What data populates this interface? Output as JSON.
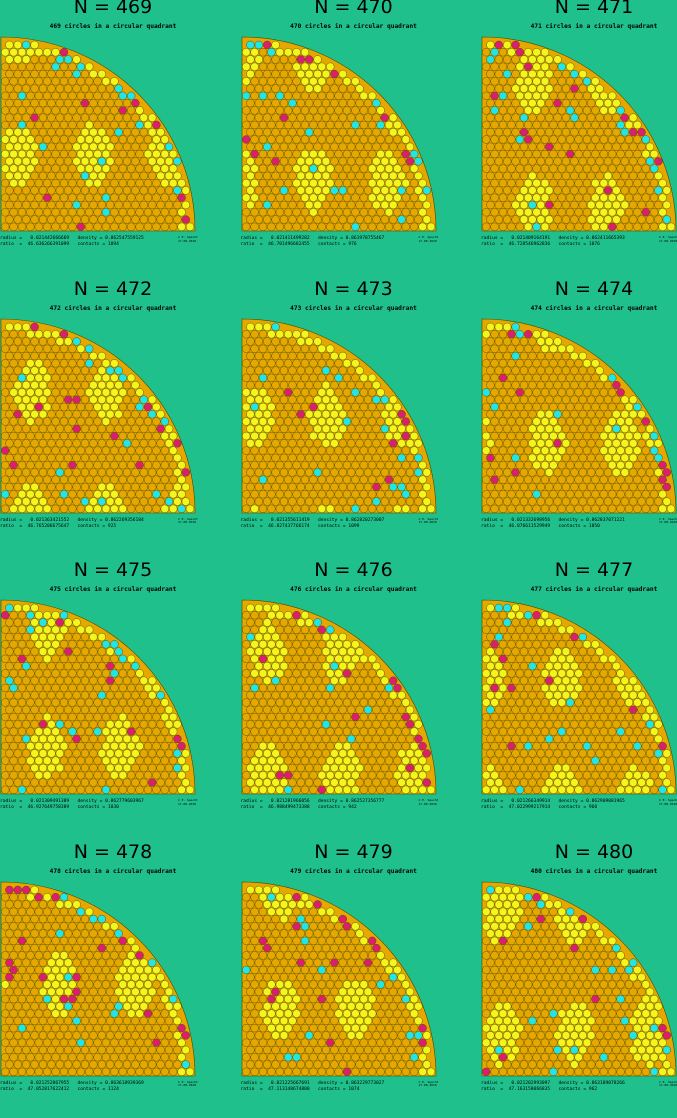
{
  "colors": {
    "background": "#20c08c",
    "orange": "#e6a800",
    "yellow": "#f5f51e",
    "cyan": "#22e6e6",
    "magenta": "#dc1e6e",
    "edge": "#4a4a00"
  },
  "credit": "© E. Specht\n17.08.2010",
  "panels": [
    {
      "title": "N = 469",
      "subtitle": "469 circles in a circular quadrant",
      "stats": "radius =   0.021442666669   density = 0.862547559125\nratio  =  46.636266391099   contacts = 1094"
    },
    {
      "title": "N = 470",
      "subtitle": "470 circles in a circular quadrant",
      "stats": "radius =   0.021411499282   density = 0.861978755467\nratio  =  46.701496682455   contacts = 976"
    },
    {
      "title": "N = 471",
      "subtitle": "471 circles in a circular quadrant",
      "stats": "radius =   0.021409164191   density = 0.862411665393\nratio  =  46.728546962836   contacts = 1076"
    },
    {
      "title": "N = 472",
      "subtitle": "472 circles in a circular quadrant",
      "stats": "radius =   0.021363421552   density = 0.862269356184\nratio  =  46.765206675647   contacts = 925"
    },
    {
      "title": "N = 473",
      "subtitle": "473 circles in a circular quadrant",
      "stats": "radius =   0.021355611419   density = 0.862820273007\nratio  =  46.827437766174   contacts = 1099"
    },
    {
      "title": "N = 474",
      "subtitle": "474 circles in a circular quadrant",
      "stats": "radius =   0.021332698956   density = 0.862837071221\nratio  =  46.876611529949   contacts = 1050"
    },
    {
      "title": "N = 475",
      "subtitle": "475 circles in a circular quadrant",
      "stats": "radius =   0.021309491389   density = 0.862779603967\nratio  =  46.927649758389   contacts = 1030"
    },
    {
      "title": "N = 476",
      "subtitle": "476 circles in a circular quadrant",
      "stats": "radius =   0.021281966056   density = 0.862527356777\nratio  =  46.988499473388   contacts = 942"
    },
    {
      "title": "N = 477",
      "subtitle": "477 circles in a circular quadrant",
      "stats": "radius =   0.021266349914   density = 0.862909081965\nratio  =  47.022999217914   contacts = 960"
    },
    {
      "title": "N = 478",
      "subtitle": "478 circles in a circular quadrant",
      "stats": "radius =   0.021252867955   density = 0.863618939369\nratio  =  47.052817622412   contacts = 1124"
    },
    {
      "title": "N = 479",
      "subtitle": "479 circles in a circular quadrant",
      "stats": "radius =   0.021225667691   density = 0.863229773027\nratio  =  47.113148674800   contacts = 1074"
    },
    {
      "title": "N = 480",
      "subtitle": "480 circles in a circular quadrant",
      "stats": "radius =   0.021202993097   density = 0.863189078266\nratio  =  47.163158066835   contacts = 962"
    }
  ]
}
